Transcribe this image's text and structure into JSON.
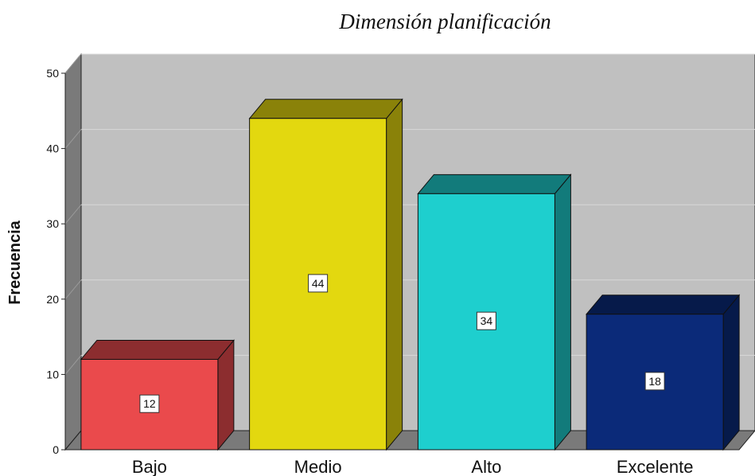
{
  "chart_data": {
    "type": "bar",
    "title": "Dimensión planificación",
    "xlabel": "",
    "ylabel": "Frecuencia",
    "categories": [
      "Bajo",
      "Medio",
      "Alto",
      "Excelente"
    ],
    "values": [
      12,
      44,
      34,
      18
    ],
    "data_labels": [
      "12",
      "44",
      "34",
      "18"
    ],
    "ylim": [
      0,
      50
    ],
    "yticks": [
      0,
      10,
      20,
      30,
      40,
      50
    ],
    "grid": true,
    "legend": "none",
    "style": "3d",
    "colors": [
      "#ea4a4c",
      "#e3d80f",
      "#1ecfce",
      "#0b2a79"
    ],
    "side_colors": [
      "#8c2d2f",
      "#8a8209",
      "#127b7b",
      "#061a4a"
    ],
    "wall_color": "#c0c0c0"
  }
}
